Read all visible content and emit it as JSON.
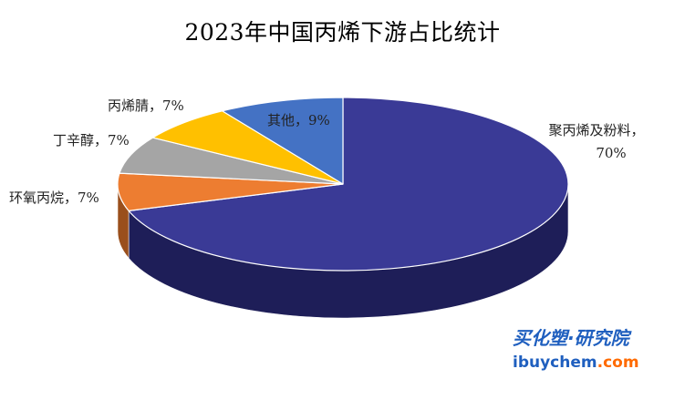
{
  "chart_data": {
    "type": "pie",
    "title": "2023年中国丙烯下游占比统计",
    "slices": [
      {
        "name": "聚丙烯及粉料",
        "value": 70,
        "value_label": "70%",
        "color": "#3a3a96",
        "side_color": "#1e1e58"
      },
      {
        "name": "环氧丙烷",
        "value": 7,
        "value_label": "7%",
        "color": "#ed7d31",
        "side_color": "#9a4f1c"
      },
      {
        "name": "丁辛醇",
        "value": 7,
        "value_label": "7%",
        "color": "#a5a5a5",
        "side_color": "#6c6c6c"
      },
      {
        "name": "丙烯腈",
        "value": 7,
        "value_label": "7%",
        "color": "#ffc000",
        "side_color": "#a67c00"
      },
      {
        "name": "其他",
        "value": 9,
        "value_label": "9%",
        "color": "#4472c4",
        "side_color": "#2b4a82"
      }
    ],
    "style": "3d",
    "legend": "none"
  },
  "watermark": {
    "cn_text": "买化塑·研究院",
    "en_prefix": "ibuychem",
    "en_suffix": ".com",
    "color_primary": "#1f5fbf",
    "color_accent": "#ff6a00"
  }
}
